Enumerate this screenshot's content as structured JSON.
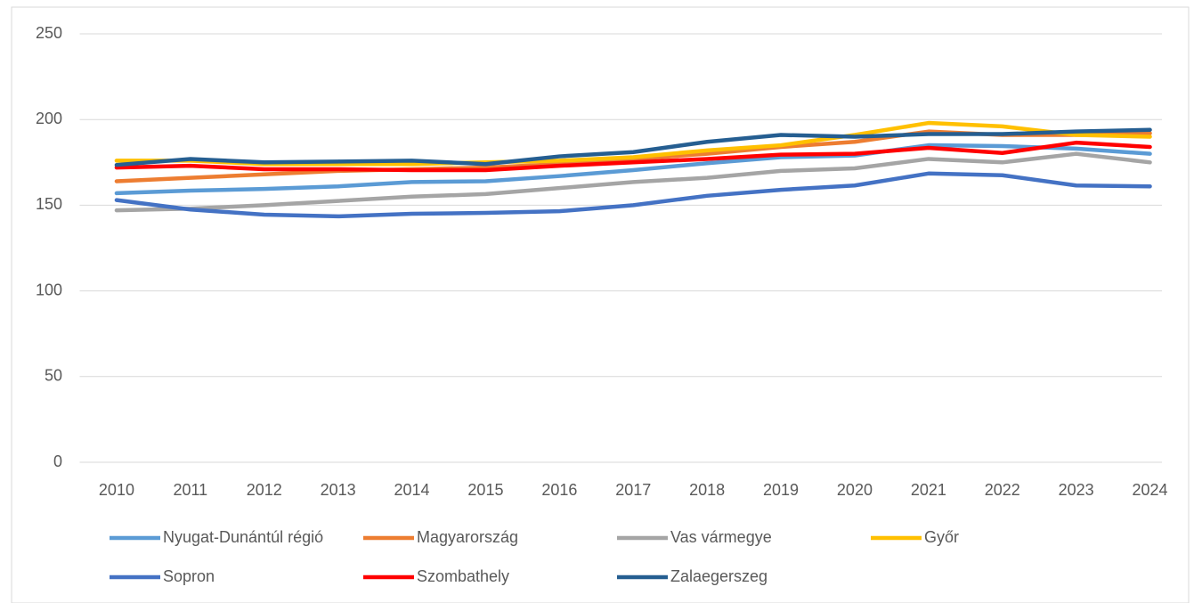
{
  "chart_data": {
    "type": "line",
    "categories": [
      "2010",
      "2011",
      "2012",
      "2013",
      "2014",
      "2015",
      "2016",
      "2017",
      "2018",
      "2019",
      "2020",
      "2021",
      "2022",
      "2023",
      "2024"
    ],
    "ylim": [
      0,
      250
    ],
    "yticks": [
      0,
      50,
      100,
      150,
      200,
      250
    ],
    "grid": true,
    "legend": "bottom",
    "series": [
      {
        "name": "Nyugat-Dunántúl régió",
        "color": "#5b9bd5",
        "values": [
          157,
          158.5,
          159.5,
          161,
          163.5,
          164,
          167,
          170.5,
          174.5,
          178,
          179,
          185,
          184.5,
          183,
          180
        ]
      },
      {
        "name": "Magyarország",
        "color": "#ed7d31",
        "values": [
          164,
          166,
          168,
          170,
          171,
          172,
          174,
          177,
          180,
          184,
          187,
          193,
          191,
          191,
          192
        ]
      },
      {
        "name": "Vas vármegye",
        "color": "#a5a5a5",
        "values": [
          147,
          148,
          150,
          152.5,
          155,
          156.5,
          160,
          163.5,
          166,
          170,
          171.5,
          177,
          175,
          180,
          175
        ]
      },
      {
        "name": "Győr",
        "color": "#ffc000",
        "values": [
          176,
          176,
          174,
          174,
          174,
          175,
          176,
          178,
          182,
          185,
          191,
          198,
          196,
          191,
          190
        ]
      },
      {
        "name": "Sopron",
        "color": "#4472c4",
        "values": [
          153,
          147.5,
          144.5,
          143.5,
          145,
          145.5,
          146.5,
          150,
          155.5,
          159,
          161.5,
          168.5,
          167.5,
          161.5,
          161
        ]
      },
      {
        "name": "Szombathely",
        "color": "#ff0000",
        "values": [
          172,
          173,
          171,
          171,
          170.5,
          170.5,
          173,
          175,
          177,
          179.5,
          180,
          183.5,
          180.5,
          186.5,
          184
        ]
      },
      {
        "name": "Zalaegerszeg",
        "color": "#255e91",
        "values": [
          173.5,
          177,
          175,
          175.5,
          176,
          174,
          178.5,
          181,
          187,
          191,
          190,
          191.5,
          191.5,
          193,
          194
        ]
      }
    ]
  }
}
